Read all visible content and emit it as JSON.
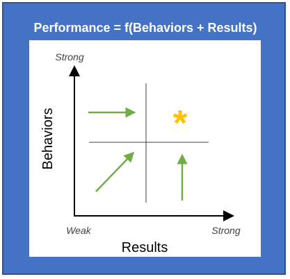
{
  "title": "Performance = f(Behaviors + Results)",
  "diagram": {
    "y_axis": {
      "label": "Behaviors",
      "top_label": "Strong"
    },
    "x_axis": {
      "label": "Results",
      "left_label": "Weak",
      "right_label": "Strong"
    },
    "marker": {
      "symbol": "*",
      "color": "#ffc000"
    }
  },
  "colors": {
    "frame": "#4472c4",
    "frame_border": "#2f528f",
    "arrow": "#70ad47",
    "axis": "#000000",
    "divider": "#404040"
  },
  "icons": [
    "arrow-right-icon",
    "arrow-diagonal-icon",
    "arrow-up-icon",
    "star-icon"
  ]
}
